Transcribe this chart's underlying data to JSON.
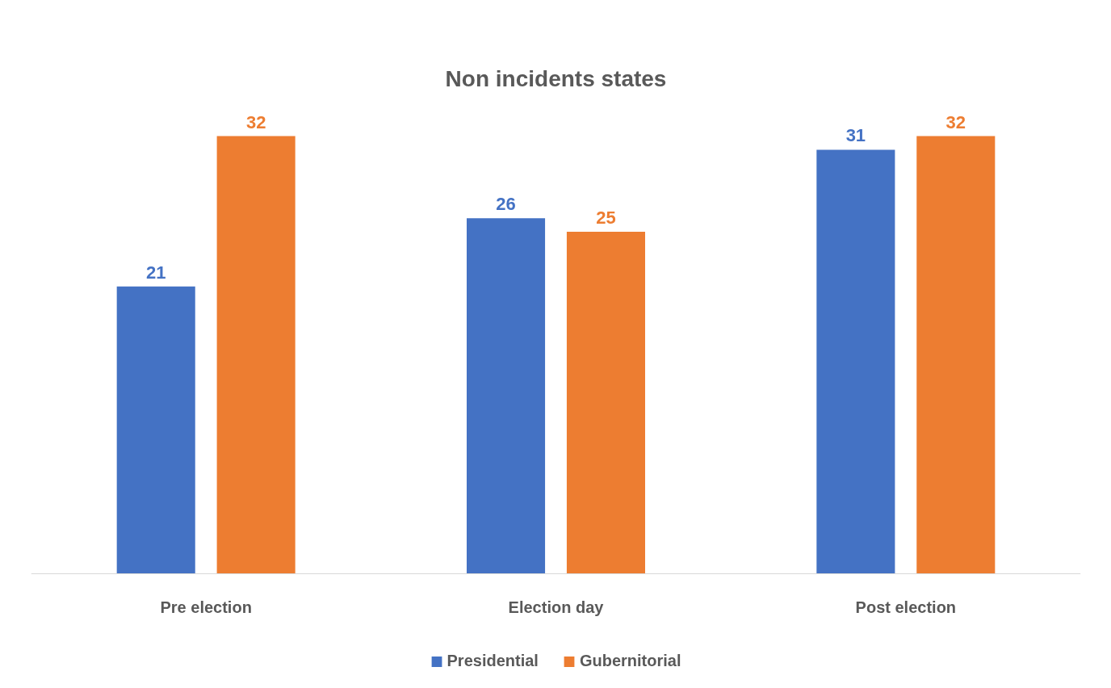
{
  "chart_data": {
    "type": "bar",
    "title": "Non incidents states",
    "categories": [
      "Pre election",
      "Election day",
      "Post election"
    ],
    "series": [
      {
        "name": "Presidential",
        "color": "#4472c4",
        "values": [
          21,
          26,
          31
        ]
      },
      {
        "name": "Gubernitorial",
        "color": "#ed7d31",
        "values": [
          32,
          25,
          32
        ]
      }
    ],
    "data_labels": true,
    "legend": "bottom",
    "grid": false,
    "tick_labels": "x"
  }
}
